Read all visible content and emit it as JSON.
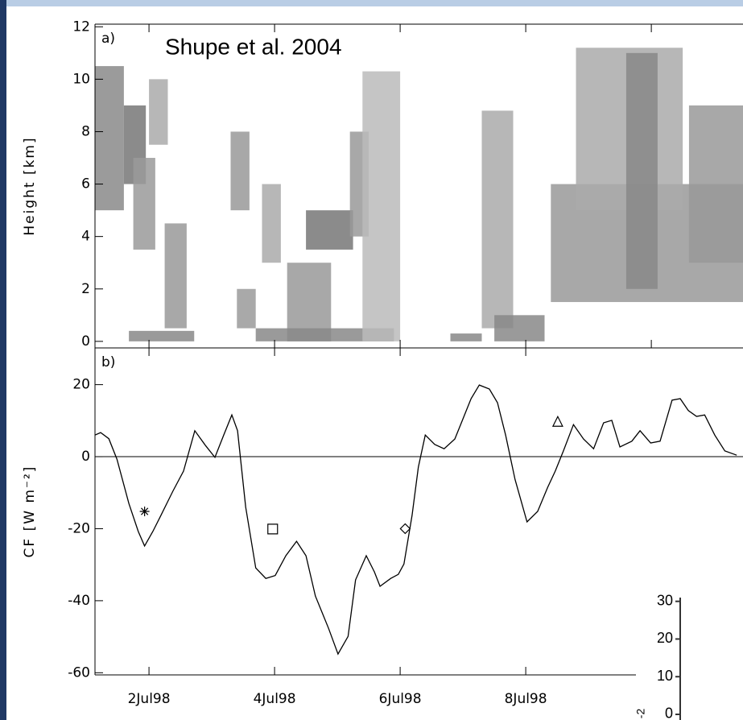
{
  "chart_data": [
    {
      "type": "cloud",
      "panel_label": "a)",
      "annotation": "Shupe et al. 2004",
      "y_label": "Height [km]",
      "xlim": [
        1.14,
        11.46
      ],
      "xticks": [
        2,
        4,
        6,
        8,
        10
      ],
      "ylim": [
        -0.25,
        12.1
      ],
      "yticks": [
        0,
        2,
        4,
        6,
        8,
        10,
        12
      ],
      "cloud_boxes": [
        {
          "x": [
            1.14,
            1.6
          ],
          "height": [
            5,
            10.5
          ],
          "color": "#8a8a8a"
        },
        {
          "x": [
            1.6,
            1.95
          ],
          "height": [
            6,
            9
          ],
          "color": "#777777"
        },
        {
          "x": [
            1.75,
            2.1
          ],
          "height": [
            3.5,
            7
          ],
          "color": "#9a9a9a"
        },
        {
          "x": [
            2.0,
            2.3
          ],
          "height": [
            7.5,
            10
          ],
          "color": "#aaaaaa"
        },
        {
          "x": [
            2.25,
            2.6
          ],
          "height": [
            0.5,
            4.5
          ],
          "color": "#999999"
        },
        {
          "x": [
            1.68,
            2.72
          ],
          "height": [
            0,
            0.4
          ],
          "color": "#888888"
        },
        {
          "x": [
            3.3,
            3.6
          ],
          "height": [
            5,
            8
          ],
          "color": "#999999"
        },
        {
          "x": [
            3.4,
            3.7
          ],
          "height": [
            0.5,
            2
          ],
          "color": "#9a9a9a"
        },
        {
          "x": [
            3.8,
            4.1
          ],
          "height": [
            3,
            6
          ],
          "color": "#aaaaaa"
        },
        {
          "x": [
            4.2,
            4.9
          ],
          "height": [
            0,
            3
          ],
          "color": "#999999"
        },
        {
          "x": [
            4.5,
            5.25
          ],
          "height": [
            3.5,
            5
          ],
          "color": "#777777"
        },
        {
          "x": [
            3.7,
            5.9
          ],
          "height": [
            0,
            0.5
          ],
          "color": "#888888"
        },
        {
          "x": [
            5.2,
            5.5
          ],
          "height": [
            4,
            8
          ],
          "color": "#999999"
        },
        {
          "x": [
            5.4,
            6.0
          ],
          "height": [
            0,
            10.3
          ],
          "color": "#bbbbbb"
        },
        {
          "x": [
            6.8,
            7.3
          ],
          "height": [
            0,
            0.3
          ],
          "color": "#888888"
        },
        {
          "x": [
            7.3,
            7.8
          ],
          "height": [
            0.5,
            8.8
          ],
          "color": "#aaaaaa"
        },
        {
          "x": [
            7.5,
            8.3
          ],
          "height": [
            0,
            1
          ],
          "color": "#888888"
        },
        {
          "x": [
            8.4,
            11.46
          ],
          "height": [
            1.5,
            6
          ],
          "color": "#999999"
        },
        {
          "x": [
            8.8,
            10.5
          ],
          "height": [
            5,
            11.2
          ],
          "color": "#aaaaaa"
        },
        {
          "x": [
            9.6,
            10.1
          ],
          "height": [
            2,
            11
          ],
          "color": "#888888"
        },
        {
          "x": [
            10.6,
            11.46
          ],
          "height": [
            3,
            9
          ],
          "color": "#999999"
        }
      ]
    },
    {
      "type": "line",
      "panel_label": "b)",
      "y_label": "CF [W m⁻²]",
      "color": "#000000",
      "xlim": [
        1.14,
        11.46
      ],
      "xticks": [
        {
          "value": 2,
          "label": "2Jul98"
        },
        {
          "value": 4,
          "label": "4Jul98"
        },
        {
          "value": 6,
          "label": "6Jul98"
        },
        {
          "value": 8,
          "label": "8Jul98"
        }
      ],
      "ylim": [
        -60.6,
        30.2
      ],
      "yticks": [
        -60,
        -40,
        -20,
        0,
        20
      ],
      "x": [
        1.14,
        1.23,
        1.36,
        1.49,
        1.68,
        1.83,
        1.93,
        2.06,
        2.19,
        2.38,
        2.55,
        2.73,
        2.9,
        3.05,
        3.19,
        3.32,
        3.41,
        3.54,
        3.7,
        3.86,
        4.01,
        4.18,
        4.35,
        4.5,
        4.65,
        4.86,
        5.01,
        5.17,
        5.29,
        5.46,
        5.59,
        5.68,
        5.85,
        5.97,
        6.06,
        6.19,
        6.29,
        6.4,
        6.55,
        6.7,
        6.87,
        7.0,
        7.13,
        7.26,
        7.42,
        7.55,
        7.68,
        7.83,
        8.02,
        8.19,
        8.35,
        8.47,
        8.6,
        8.76,
        8.92,
        9.08,
        9.24,
        9.37,
        9.5,
        9.69,
        9.82,
        9.99,
        10.14,
        10.33,
        10.46,
        10.59,
        10.72,
        10.85,
        11.01,
        11.17,
        11.36
      ],
      "values": [
        6,
        6.7,
        5,
        -0.7,
        -13,
        -20.8,
        -24.8,
        -20.8,
        -16.3,
        -9.6,
        -4,
        7.2,
        3.1,
        -0.2,
        6,
        11.6,
        7.2,
        -14,
        -30.9,
        -33.8,
        -33,
        -27.5,
        -23.5,
        -27.5,
        -38.7,
        -47.7,
        -54.8,
        -49.9,
        -34.2,
        -27.5,
        -32,
        -36,
        -33.8,
        -32.7,
        -29.8,
        -16.3,
        -2.9,
        6,
        3.4,
        2.2,
        4.9,
        10.5,
        16.1,
        19.9,
        18.8,
        15,
        6,
        -6.3,
        -18.1,
        -15.2,
        -8.5,
        -4,
        1.6,
        8.9,
        4.9,
        2.2,
        9.4,
        10.1,
        2.7,
        4.3,
        7.2,
        3.8,
        4.3,
        15.7,
        16.1,
        12.8,
        11.2,
        11.6,
        6,
        1.6,
        0.4
      ],
      "markers": [
        {
          "shape": "asterisk",
          "x": 1.93,
          "y": -15.2
        },
        {
          "shape": "square",
          "x": 3.97,
          "y": -20.1
        },
        {
          "shape": "diamond",
          "x": 6.08,
          "y": -20
        },
        {
          "shape": "triangle",
          "x": 8.51,
          "y": 9.8
        }
      ]
    },
    {
      "type": "inset",
      "y_label": "-2",
      "ylim": [
        -1.5,
        31
      ],
      "yticks": [
        0,
        10,
        20,
        30
      ]
    }
  ]
}
